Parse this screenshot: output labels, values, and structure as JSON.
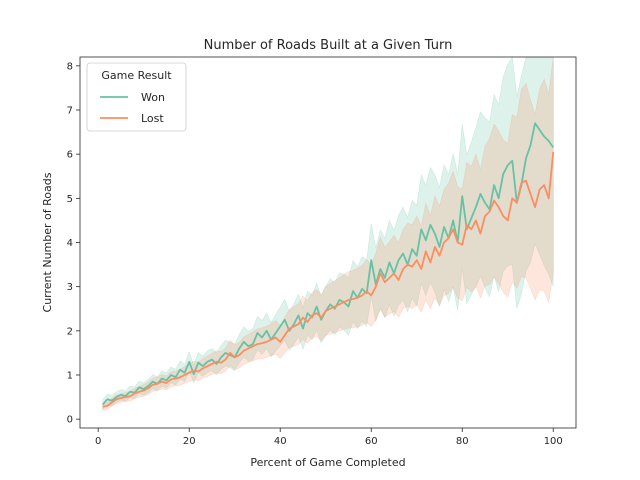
{
  "chart_data": {
    "type": "line",
    "title": "Number of Roads Built at a Given Turn",
    "xlabel": "Percent of Game Completed",
    "ylabel": "Current Number of Roads",
    "xlim": [
      -4,
      105
    ],
    "ylim": [
      -0.2,
      8.2
    ],
    "xticks": [
      0,
      20,
      40,
      60,
      80,
      100
    ],
    "yticks": [
      0,
      1,
      2,
      3,
      4,
      5,
      6,
      7,
      8
    ],
    "legend": {
      "title": "Game Result",
      "placement": "top-left"
    },
    "grid": false,
    "band": "confidence interval",
    "x": [
      1,
      2,
      3,
      4,
      5,
      6,
      7,
      8,
      9,
      10,
      11,
      12,
      13,
      14,
      15,
      16,
      17,
      18,
      19,
      20,
      21,
      22,
      23,
      24,
      25,
      26,
      27,
      28,
      29,
      30,
      31,
      32,
      33,
      34,
      35,
      36,
      37,
      38,
      39,
      40,
      41,
      42,
      43,
      44,
      45,
      46,
      47,
      48,
      49,
      50,
      51,
      52,
      53,
      54,
      55,
      56,
      57,
      58,
      59,
      60,
      61,
      62,
      63,
      64,
      65,
      66,
      67,
      68,
      69,
      70,
      71,
      72,
      73,
      74,
      75,
      76,
      77,
      78,
      79,
      80,
      81,
      82,
      83,
      84,
      85,
      86,
      87,
      88,
      89,
      90,
      91,
      92,
      93,
      94,
      95,
      96,
      97,
      98,
      99,
      100
    ],
    "series": [
      {
        "name": "Won",
        "color": "#66c2a5",
        "values": [
          0.33,
          0.45,
          0.42,
          0.5,
          0.55,
          0.52,
          0.62,
          0.6,
          0.72,
          0.68,
          0.75,
          0.85,
          0.8,
          0.92,
          0.88,
          1.0,
          0.95,
          1.12,
          1.05,
          1.3,
          1.02,
          1.28,
          1.2,
          1.3,
          1.35,
          1.25,
          1.4,
          1.5,
          1.45,
          1.4,
          1.6,
          1.75,
          1.65,
          1.7,
          1.95,
          1.85,
          2.0,
          1.8,
          1.95,
          2.1,
          2.25,
          2.0,
          2.15,
          2.35,
          2.05,
          2.4,
          2.3,
          2.55,
          2.25,
          2.45,
          2.6,
          2.5,
          2.7,
          2.65,
          2.55,
          2.9,
          2.75,
          2.95,
          2.85,
          3.6,
          3.05,
          3.4,
          3.2,
          3.55,
          3.3,
          3.6,
          3.75,
          3.5,
          3.85,
          3.7,
          4.3,
          4.05,
          4.4,
          4.2,
          3.9,
          4.35,
          4.1,
          4.5,
          4.0,
          5.05,
          4.3,
          4.55,
          4.8,
          5.1,
          4.9,
          4.75,
          5.3,
          5.0,
          5.55,
          5.75,
          5.85,
          4.9,
          5.3,
          5.9,
          6.2,
          6.7,
          6.55,
          6.4,
          6.3,
          6.15
        ],
        "ci_lower": [
          0.22,
          0.33,
          0.3,
          0.38,
          0.43,
          0.4,
          0.49,
          0.47,
          0.58,
          0.54,
          0.6,
          0.69,
          0.64,
          0.75,
          0.71,
          0.82,
          0.77,
          0.92,
          0.85,
          1.08,
          0.82,
          1.05,
          0.97,
          1.06,
          1.1,
          1.0,
          1.13,
          1.21,
          1.16,
          1.1,
          1.28,
          1.41,
          1.31,
          1.35,
          1.57,
          1.47,
          1.6,
          1.41,
          1.54,
          1.66,
          1.79,
          1.56,
          1.69,
          1.87,
          1.58,
          1.9,
          1.8,
          2.02,
          1.72,
          1.9,
          2.02,
          1.91,
          2.09,
          2.02,
          1.9,
          2.21,
          2.05,
          2.22,
          2.1,
          2.78,
          2.22,
          2.52,
          2.3,
          2.6,
          2.33,
          2.58,
          2.7,
          2.43,
          2.74,
          2.56,
          3.07,
          2.8,
          3.1,
          2.87,
          2.55,
          2.94,
          2.66,
          2.99,
          2.46,
          3.42,
          2.62,
          2.82,
          3.0,
          3.24,
          2.98,
          2.77,
          3.25,
          2.88,
          3.35,
          3.47,
          3.5,
          2.5,
          2.83,
          3.35,
          3.55,
          3.97,
          3.73,
          3.48,
          3.28,
          3.0
        ],
        "ci_upper": [
          0.44,
          0.57,
          0.54,
          0.62,
          0.67,
          0.64,
          0.75,
          0.73,
          0.86,
          0.82,
          0.9,
          1.01,
          0.96,
          1.09,
          1.05,
          1.18,
          1.13,
          1.32,
          1.25,
          1.52,
          1.22,
          1.51,
          1.43,
          1.54,
          1.6,
          1.5,
          1.67,
          1.79,
          1.74,
          1.7,
          1.92,
          2.09,
          1.99,
          2.05,
          2.33,
          2.23,
          2.4,
          2.19,
          2.36,
          2.54,
          2.71,
          2.44,
          2.61,
          2.83,
          2.52,
          2.9,
          2.8,
          3.08,
          2.78,
          3.0,
          3.18,
          3.09,
          3.31,
          3.28,
          3.2,
          3.59,
          3.45,
          3.68,
          3.6,
          4.42,
          3.88,
          4.28,
          4.1,
          4.5,
          4.27,
          4.62,
          4.8,
          4.57,
          4.96,
          4.84,
          5.53,
          5.3,
          5.7,
          5.53,
          5.25,
          5.76,
          5.54,
          6.01,
          5.54,
          6.68,
          5.98,
          6.28,
          6.6,
          6.96,
          6.82,
          6.73,
          7.35,
          7.12,
          7.75,
          8.03,
          8.2,
          7.3,
          7.77,
          8.2,
          8.2,
          8.2,
          8.2,
          8.2,
          8.2,
          8.2
        ]
      },
      {
        "name": "Lost",
        "color": "#fc8d62",
        "values": [
          0.28,
          0.3,
          0.38,
          0.45,
          0.48,
          0.5,
          0.52,
          0.58,
          0.62,
          0.65,
          0.7,
          0.78,
          0.8,
          0.85,
          0.82,
          0.9,
          0.92,
          0.95,
          1.0,
          1.05,
          1.1,
          1.08,
          1.15,
          1.2,
          1.25,
          1.3,
          1.28,
          1.35,
          1.5,
          1.4,
          1.45,
          1.55,
          1.6,
          1.65,
          1.7,
          1.72,
          1.75,
          1.8,
          1.85,
          1.75,
          1.9,
          2.05,
          2.1,
          2.15,
          2.3,
          2.2,
          2.35,
          2.4,
          2.3,
          2.45,
          2.5,
          2.55,
          2.6,
          2.65,
          2.7,
          2.72,
          2.75,
          2.8,
          2.9,
          2.8,
          3.0,
          3.3,
          3.1,
          3.2,
          3.3,
          3.15,
          3.4,
          3.5,
          3.45,
          3.6,
          3.4,
          3.8,
          3.55,
          3.9,
          3.7,
          4.0,
          4.1,
          4.3,
          4.0,
          3.95,
          4.4,
          4.3,
          4.5,
          4.2,
          4.6,
          4.7,
          4.95,
          4.8,
          4.6,
          4.5,
          5.0,
          4.9,
          5.35,
          5.4,
          5.1,
          4.8,
          5.2,
          5.3,
          5.0,
          6.05
        ],
        "ci_lower": [
          0.2,
          0.22,
          0.29,
          0.35,
          0.38,
          0.4,
          0.41,
          0.46,
          0.5,
          0.52,
          0.56,
          0.63,
          0.65,
          0.69,
          0.66,
          0.73,
          0.75,
          0.77,
          0.81,
          0.85,
          0.89,
          0.87,
          0.93,
          0.97,
          1.01,
          1.05,
          1.03,
          1.09,
          1.21,
          1.12,
          1.16,
          1.24,
          1.28,
          1.32,
          1.36,
          1.37,
          1.4,
          1.44,
          1.47,
          1.38,
          1.5,
          1.62,
          1.65,
          1.69,
          1.81,
          1.72,
          1.83,
          1.87,
          1.78,
          1.9,
          1.93,
          1.96,
          2.0,
          2.03,
          2.06,
          2.07,
          2.09,
          2.12,
          2.19,
          2.1,
          2.24,
          2.48,
          2.31,
          2.38,
          2.44,
          2.31,
          2.5,
          2.56,
          2.5,
          2.6,
          2.42,
          2.71,
          2.5,
          2.75,
          2.58,
          2.8,
          2.85,
          2.99,
          2.74,
          2.68,
          2.99,
          2.88,
          3.0,
          2.75,
          3.02,
          3.05,
          3.22,
          3.07,
          2.88,
          2.76,
          3.1,
          2.97,
          3.23,
          3.2,
          2.97,
          2.7,
          2.93,
          2.9,
          2.65,
          3.3
        ],
        "ci_upper": [
          0.36,
          0.38,
          0.47,
          0.55,
          0.58,
          0.6,
          0.63,
          0.7,
          0.74,
          0.78,
          0.84,
          0.93,
          0.95,
          1.01,
          0.98,
          1.07,
          1.09,
          1.13,
          1.19,
          1.25,
          1.31,
          1.29,
          1.37,
          1.43,
          1.49,
          1.55,
          1.53,
          1.61,
          1.79,
          1.68,
          1.74,
          1.86,
          1.92,
          1.98,
          2.04,
          2.07,
          2.1,
          2.16,
          2.23,
          2.12,
          2.3,
          2.48,
          2.55,
          2.61,
          2.79,
          2.68,
          2.87,
          2.93,
          2.82,
          3.0,
          3.07,
          3.14,
          3.2,
          3.27,
          3.34,
          3.37,
          3.41,
          3.48,
          3.61,
          3.5,
          3.76,
          4.12,
          3.89,
          4.02,
          4.16,
          3.99,
          4.3,
          4.44,
          4.4,
          4.6,
          4.38,
          4.89,
          4.6,
          5.05,
          4.82,
          5.2,
          5.35,
          5.61,
          5.26,
          5.22,
          5.81,
          5.72,
          6.0,
          5.65,
          6.18,
          6.35,
          6.68,
          6.53,
          6.32,
          6.24,
          6.9,
          6.83,
          7.47,
          7.6,
          7.23,
          6.9,
          7.47,
          7.7,
          7.35,
          8.2
        ]
      }
    ]
  }
}
